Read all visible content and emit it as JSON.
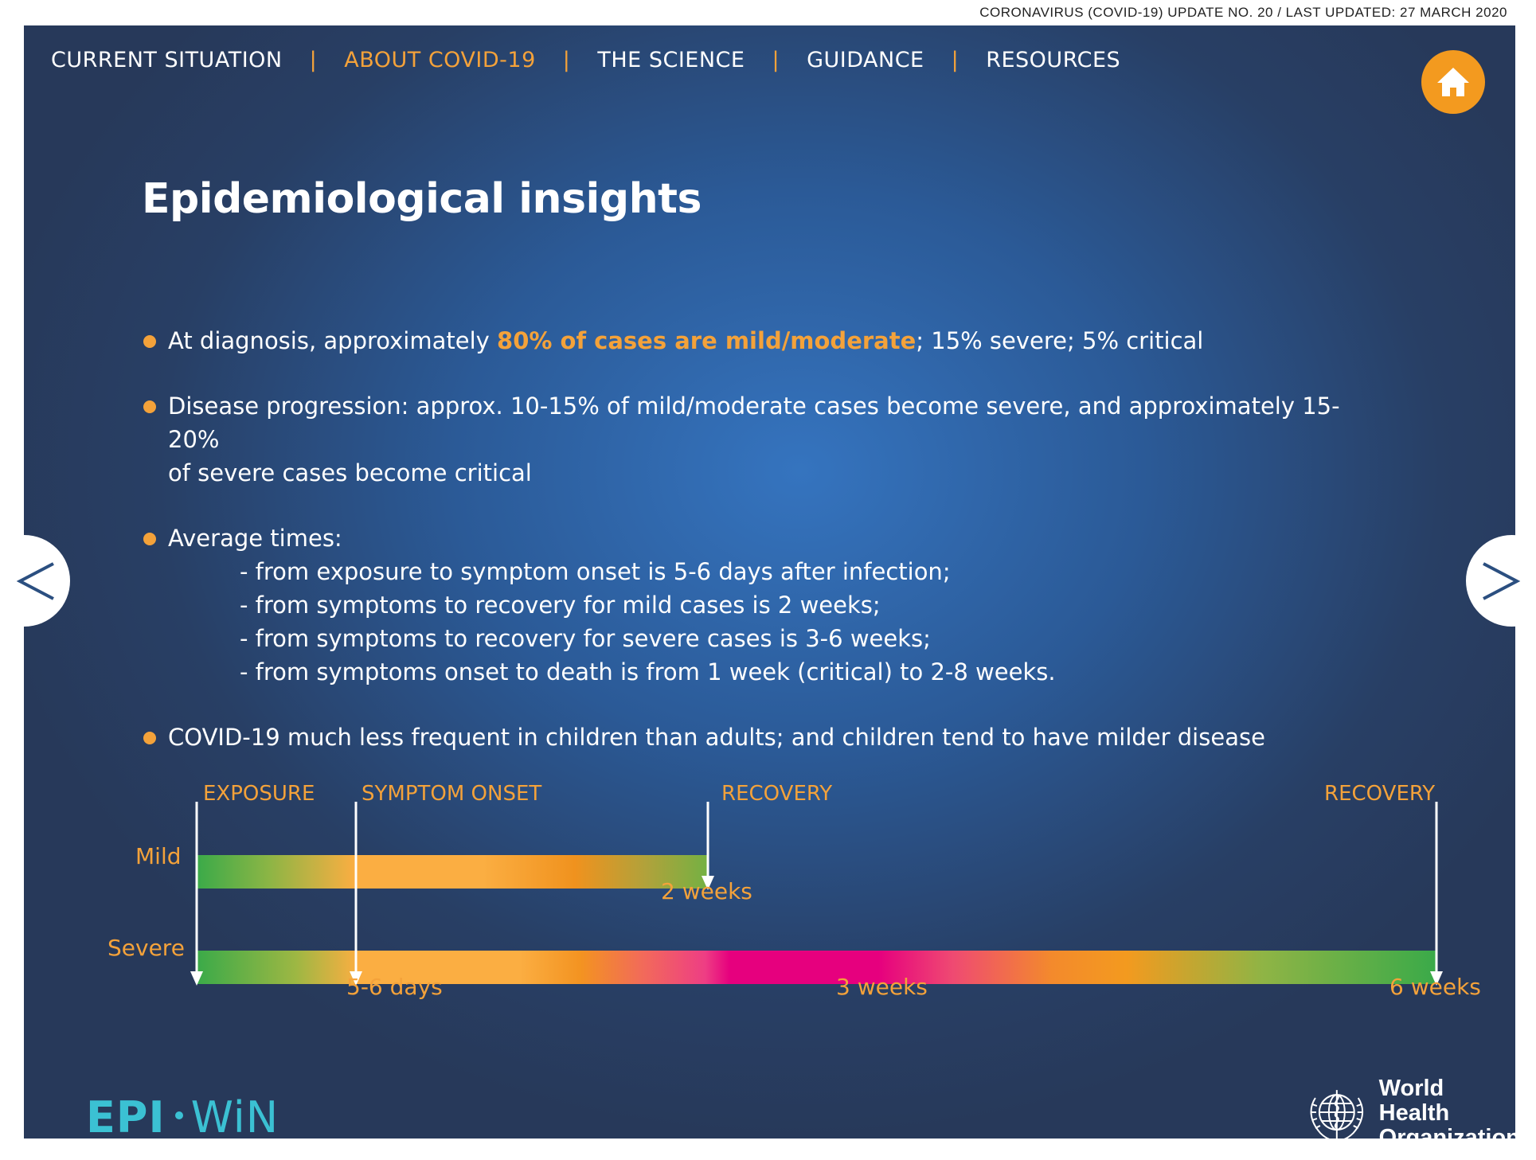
{
  "top_header": "CORONAVIRUS (COVID-19) UPDATE NO. 20  /  LAST UPDATED: 27 MARCH 2020",
  "nav": {
    "items": [
      {
        "label": "CURRENT SITUATION"
      },
      {
        "label": "ABOUT COVID-19"
      },
      {
        "label": "THE SCIENCE"
      },
      {
        "label": "GUIDANCE"
      },
      {
        "label": "RESOURCES"
      }
    ],
    "separator": "|",
    "active_index": 1
  },
  "home_button": {
    "icon": "home-icon"
  },
  "title": "Epidemiological insights",
  "bullets": {
    "b1": {
      "pre": "At diagnosis, approximately ",
      "highlight": "80% of cases are mild/moderate",
      "post": "; 15% severe; 5% critical"
    },
    "b2": {
      "line1": "Disease progression: approx. 10-15% of mild/moderate cases become severe, and approximately 15-20%",
      "line2": "of severe cases become critical"
    },
    "b3": {
      "heading": "Average times:",
      "items": [
        "- from exposure to symptom onset is 5-6 days after infection;",
        "- from symptoms to recovery for mild cases is 2 weeks;",
        "- from symptoms to recovery for severe cases is 3-6 weeks;",
        "- from symptoms onset to death is from 1 week (critical) to 2-8 weeks."
      ]
    },
    "b4": {
      "text": "COVID-19 much less frequent in children than adults; and children tend to have milder disease"
    }
  },
  "timeline": {
    "markers": {
      "exposure": "EXPOSURE",
      "symptom_onset": "SYMPTOM ONSET",
      "recovery_mild": "RECOVERY",
      "recovery_severe": "RECOVERY"
    },
    "rows": {
      "mild": "Mild",
      "severe": "Severe"
    },
    "durations": {
      "mild": "2 weeks",
      "symptom_onset": "5-6 days",
      "severe_mid": "3 weeks",
      "severe_end": "6 weeks"
    }
  },
  "prev_button": {
    "icon": "chevron-left-icon"
  },
  "next_button": {
    "icon": "chevron-right-icon"
  },
  "logos": {
    "epi": "EPI",
    "win": "WiN",
    "who_line1": "World Health",
    "who_line2": "Organization"
  },
  "colors": {
    "background": "#2b4a7a",
    "accent": "#f4a23a",
    "epi_teal": "#3bc1d3",
    "home_button": "#f39a1f"
  }
}
